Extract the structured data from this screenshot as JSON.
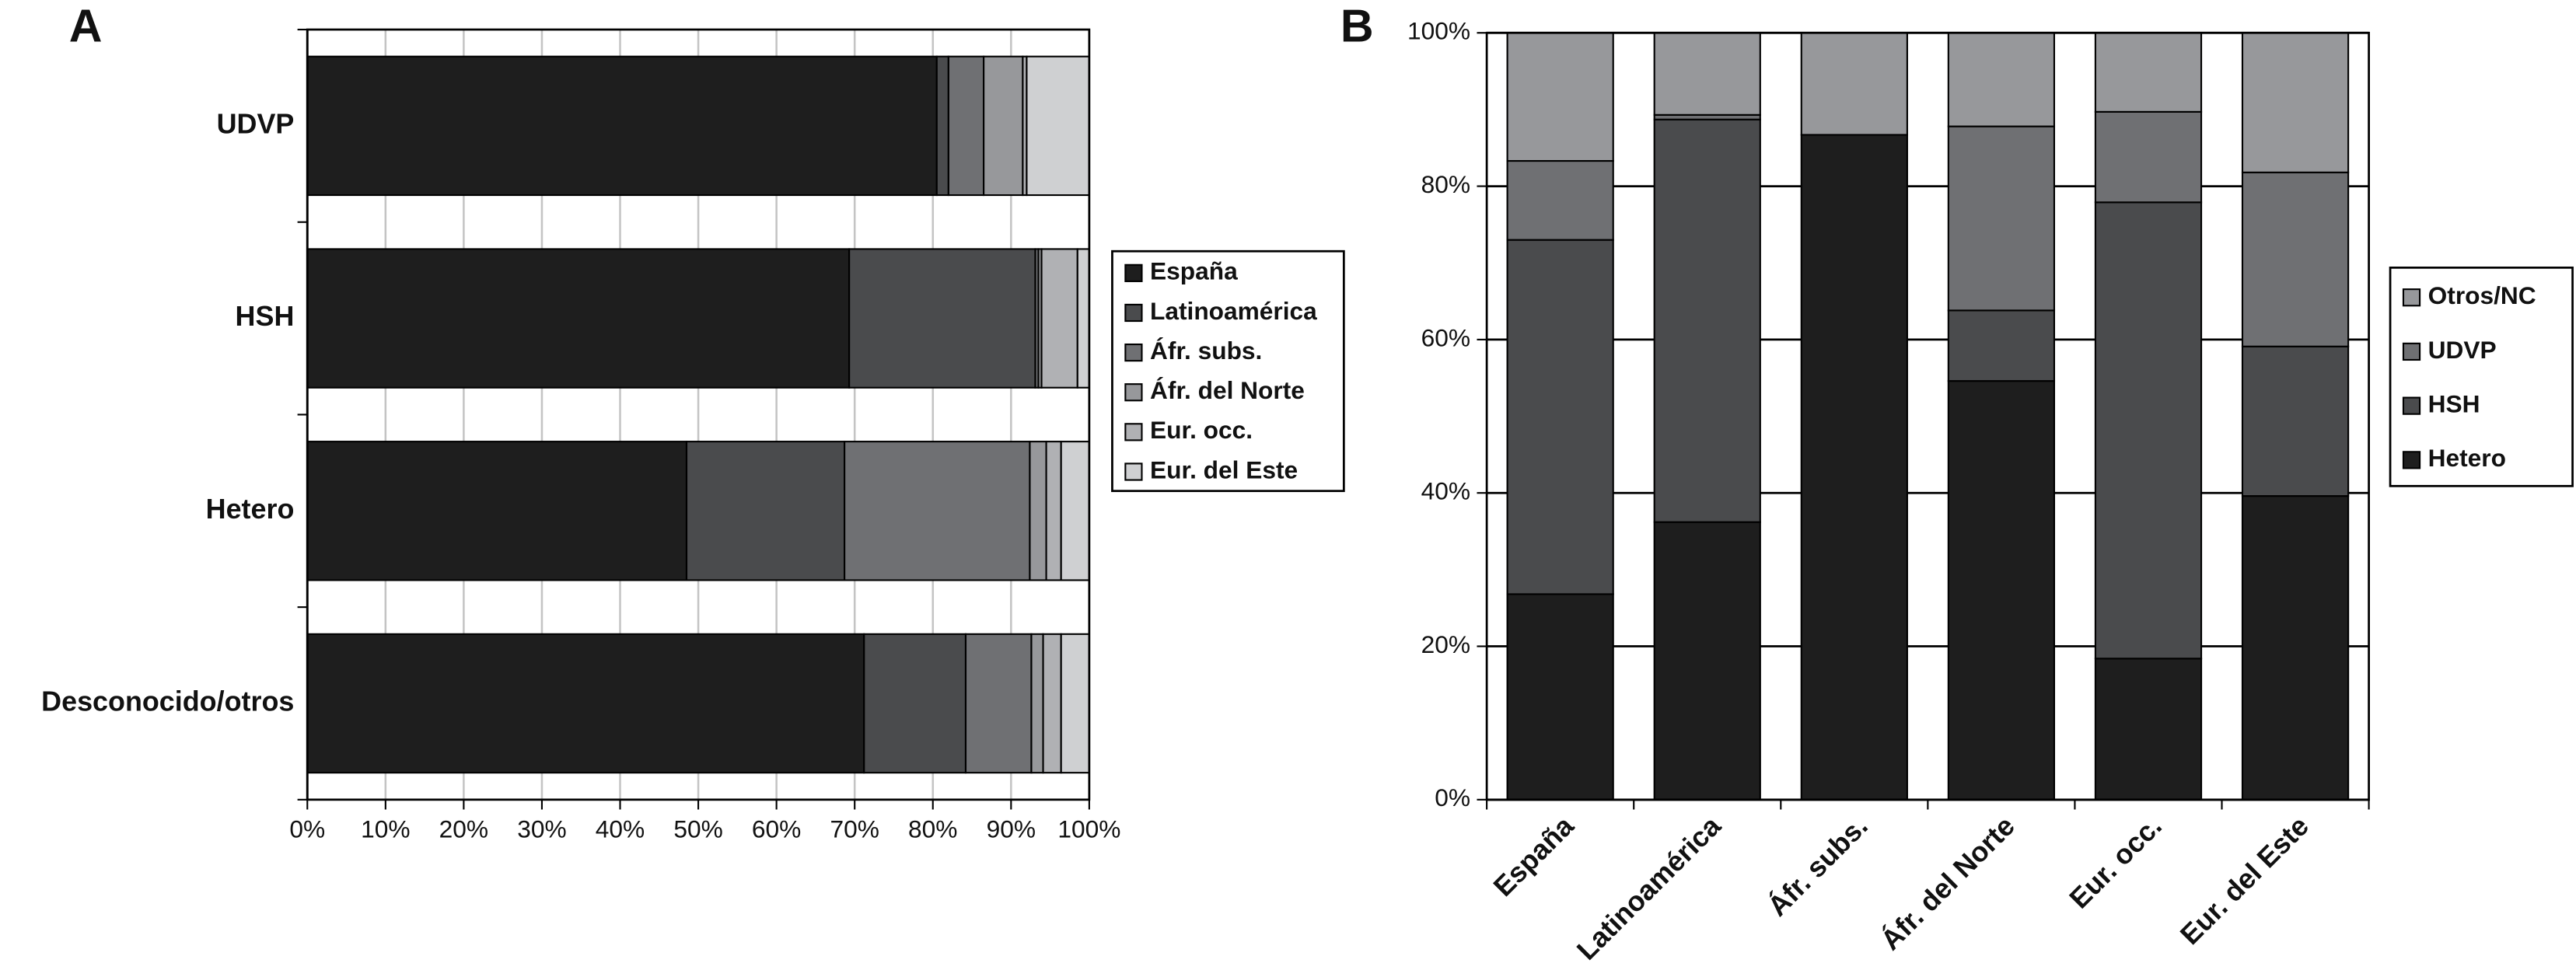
{
  "chart_data": [
    {
      "type": "bar",
      "panel_label": "A",
      "orientation": "horizontal",
      "stacked": true,
      "grid": true,
      "legend": "right",
      "categories": [
        "UDVP",
        "HSH",
        "Hetero",
        "Desconocido/otros"
      ],
      "series": [
        {
          "name": "España",
          "color": "#1e1e1e",
          "values": [
            80.5,
            69.3,
            48.5,
            71.2
          ]
        },
        {
          "name": "Latinoamérica",
          "color": "#4a4b4d",
          "values": [
            1.5,
            23.8,
            20.2,
            13
          ]
        },
        {
          "name": "Áfr. subs.",
          "color": "#6f7073",
          "values": [
            4.5,
            0.4,
            23.7,
            8.4
          ]
        },
        {
          "name": "Áfr. del Norte",
          "color": "#97989b",
          "values": [
            5,
            0.4,
            2.1,
            1.5
          ]
        },
        {
          "name": "Eur. occ.",
          "color": "#b0b1b4",
          "values": [
            0.5,
            4.6,
            1.9,
            2.3
          ]
        },
        {
          "name": "Eur. del Este",
          "color": "#cfd0d2",
          "values": [
            8,
            1.5,
            3.6,
            3.6
          ]
        }
      ],
      "xlim": [
        0,
        100
      ],
      "xticks": [
        {
          "value": 0,
          "label": "0%"
        },
        {
          "value": 10,
          "label": "10%"
        },
        {
          "value": 20,
          "label": "20%"
        },
        {
          "value": 30,
          "label": "30%"
        },
        {
          "value": 40,
          "label": "40%"
        },
        {
          "value": 50,
          "label": "50%"
        },
        {
          "value": 60,
          "label": "60%"
        },
        {
          "value": 70,
          "label": "70%"
        },
        {
          "value": 80,
          "label": "80%"
        },
        {
          "value": 90,
          "label": "90%"
        },
        {
          "value": 100,
          "label": "100%"
        }
      ]
    },
    {
      "type": "bar",
      "panel_label": "B",
      "orientation": "vertical",
      "stacked": true,
      "grid": true,
      "legend": "right",
      "categories": [
        "España",
        "Latinoamérica",
        "Áfr. subs.",
        "Áfr. del Norte",
        "Eur. occ.",
        "Eur. del Este"
      ],
      "series": [
        {
          "name": "Hetero",
          "color": "#1e1e1e",
          "values": [
            26.8,
            36.2,
            86.7,
            54.6,
            18.4,
            39.6
          ]
        },
        {
          "name": "HSH",
          "color": "#4a4b4d",
          "values": [
            46.2,
            52.5,
            0,
            9.2,
            59.5,
            19.5
          ]
        },
        {
          "name": "UDVP",
          "color": "#6f7073",
          "values": [
            10.3,
            0.6,
            0,
            24,
            11.8,
            22.7
          ]
        },
        {
          "name": "Otros/NC",
          "color": "#97989b",
          "values": [
            16.7,
            10.7,
            13.3,
            12.2,
            10.3,
            18.2
          ]
        }
      ],
      "ylim": [
        0,
        100
      ],
      "yticks": [
        {
          "value": 0,
          "label": "0%"
        },
        {
          "value": 20,
          "label": "20%"
        },
        {
          "value": 40,
          "label": "40%"
        },
        {
          "value": 60,
          "label": "60%"
        },
        {
          "value": 80,
          "label": "80%"
        },
        {
          "value": 100,
          "label": "100%"
        }
      ]
    }
  ]
}
